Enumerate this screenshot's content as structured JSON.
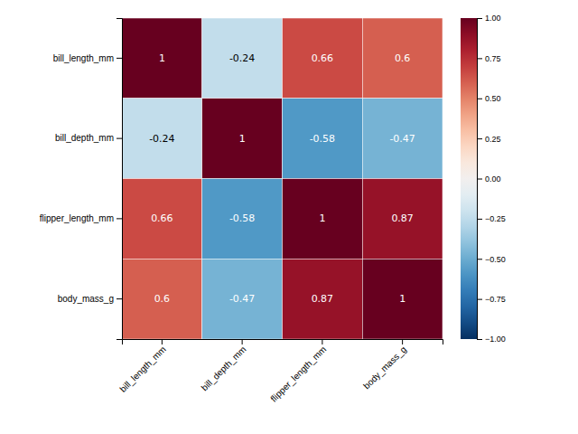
{
  "chart_data": {
    "type": "heatmap",
    "categories": [
      "bill_length_mm",
      "bill_depth_mm",
      "flipper_length_mm",
      "body_mass_g"
    ],
    "cells": [
      [
        1.0,
        -0.24,
        0.66,
        0.6
      ],
      [
        -0.24,
        1.0,
        -0.58,
        -0.47
      ],
      [
        0.66,
        -0.58,
        1.0,
        0.87
      ],
      [
        0.6,
        -0.47,
        0.87,
        1.0
      ]
    ],
    "data_labels": true,
    "color": "RdBu_r",
    "color_range": [
      -1.0,
      1.0
    ],
    "color_ticks": [
      {
        "value": -1.0,
        "label": "−1.00"
      },
      {
        "value": -0.75,
        "label": "−0.75"
      },
      {
        "value": -0.5,
        "label": "−0.50"
      },
      {
        "value": -0.25,
        "label": "−0.25"
      },
      {
        "value": 0.0,
        "label": "0.00"
      },
      {
        "value": 0.25,
        "label": "0.25"
      },
      {
        "value": 0.5,
        "label": "0.50"
      },
      {
        "value": 0.75,
        "label": "0.75"
      },
      {
        "value": 1.0,
        "label": "1.00"
      }
    ]
  }
}
